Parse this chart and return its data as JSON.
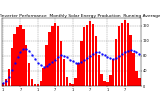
{
  "title": "Solar PV/Inverter Performance  Monthly Solar Energy Production  Running Average",
  "bar_values": [
    8,
    18,
    45,
    100,
    138,
    155,
    162,
    150,
    108,
    60,
    18,
    6,
    5,
    14,
    48,
    108,
    142,
    158,
    168,
    160,
    118,
    72,
    25,
    8,
    6,
    22,
    62,
    118,
    155,
    162,
    172,
    165,
    132,
    82,
    32,
    14,
    10,
    28,
    72,
    125,
    158,
    168,
    175,
    168,
    135,
    88,
    40,
    20
  ],
  "avg_values": [
    8,
    13,
    24,
    43,
    62,
    78,
    89,
    98,
    98,
    93,
    83,
    72,
    62,
    55,
    51,
    52,
    57,
    63,
    70,
    78,
    81,
    80,
    76,
    70,
    65,
    61,
    60,
    63,
    68,
    74,
    80,
    86,
    89,
    89,
    86,
    82,
    77,
    73,
    71,
    74,
    79,
    84,
    90,
    93,
    94,
    93,
    90,
    86
  ],
  "n_bars": 48,
  "bar_color": "#ff0000",
  "avg_color": "#0000ff",
  "bg_color": "#ffffff",
  "plot_bg": "#ffffff",
  "grid_color": "#888888",
  "ylim": [
    0,
    180
  ],
  "yticks": [
    0,
    40,
    80,
    120,
    160
  ],
  "title_fontsize": 3.2,
  "tick_fontsize": 2.5,
  "ylabel": "kWh"
}
